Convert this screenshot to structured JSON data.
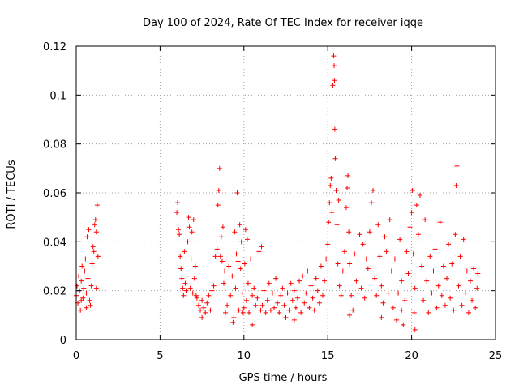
{
  "chart_data": {
    "type": "scatter",
    "title": "Day 100 of 2024, Rate Of TEC Index for receiver iqqe",
    "xlabel": "GPS time / hours",
    "ylabel": "ROTI / TECUs",
    "xlim": [
      0,
      25
    ],
    "ylim": [
      0,
      0.12
    ],
    "x_ticks": [
      0,
      5,
      10,
      15,
      20,
      25
    ],
    "x_tick_labels": [
      "0",
      "5",
      "10",
      "15",
      "20",
      "25"
    ],
    "y_ticks": [
      0,
      0.02,
      0.04,
      0.06,
      0.08,
      0.1,
      0.12
    ],
    "y_tick_labels": [
      "0",
      "0.02",
      "0.04",
      "0.06",
      "0.08",
      "0.1",
      "0.12"
    ],
    "grid": true,
    "marker": "+",
    "color": "#ff0000",
    "series": [
      {
        "name": "ROTI",
        "points": [
          [
            0.0,
            0.018
          ],
          [
            0.05,
            0.022
          ],
          [
            0.1,
            0.015
          ],
          [
            0.15,
            0.026
          ],
          [
            0.2,
            0.02
          ],
          [
            0.25,
            0.012
          ],
          [
            0.3,
            0.024
          ],
          [
            0.35,
            0.03
          ],
          [
            0.4,
            0.017
          ],
          [
            0.45,
            0.021
          ],
          [
            0.5,
            0.028
          ],
          [
            0.55,
            0.033
          ],
          [
            0.6,
            0.019
          ],
          [
            0.65,
            0.042
          ],
          [
            0.7,
            0.025
          ],
          [
            0.75,
            0.045
          ],
          [
            0.8,
            0.016
          ],
          [
            0.85,
            0.014
          ],
          [
            0.9,
            0.022
          ],
          [
            0.95,
            0.031
          ],
          [
            1.0,
            0.038
          ],
          [
            1.05,
            0.036
          ],
          [
            1.1,
            0.047
          ],
          [
            1.15,
            0.049
          ],
          [
            1.2,
            0.044
          ],
          [
            1.25,
            0.055
          ],
          [
            1.3,
            0.034
          ],
          [
            1.2,
            0.021
          ],
          [
            0.6,
            0.013
          ],
          [
            0.3,
            0.016
          ],
          [
            6.0,
            0.052
          ],
          [
            6.05,
            0.056
          ],
          [
            6.1,
            0.045
          ],
          [
            6.15,
            0.043
          ],
          [
            6.2,
            0.034
          ],
          [
            6.25,
            0.029
          ],
          [
            6.3,
            0.025
          ],
          [
            6.35,
            0.021
          ],
          [
            6.4,
            0.018
          ],
          [
            6.45,
            0.036
          ],
          [
            6.5,
            0.023
          ],
          [
            6.55,
            0.02
          ],
          [
            6.6,
            0.026
          ],
          [
            6.65,
            0.04
          ],
          [
            6.7,
            0.05
          ],
          [
            6.75,
            0.046
          ],
          [
            6.8,
            0.021
          ],
          [
            6.85,
            0.033
          ],
          [
            6.9,
            0.044
          ],
          [
            6.95,
            0.019
          ],
          [
            7.0,
            0.049
          ],
          [
            7.05,
            0.025
          ],
          [
            7.1,
            0.03
          ],
          [
            7.15,
            0.018
          ],
          [
            7.2,
            0.017
          ],
          [
            7.3,
            0.014
          ],
          [
            7.4,
            0.012
          ],
          [
            7.5,
            0.016
          ],
          [
            7.6,
            0.013
          ],
          [
            7.7,
            0.011
          ],
          [
            7.8,
            0.015
          ],
          [
            7.9,
            0.018
          ],
          [
            8.0,
            0.012
          ],
          [
            8.1,
            0.02
          ],
          [
            8.2,
            0.022
          ],
          [
            8.3,
            0.034
          ],
          [
            8.4,
            0.037
          ],
          [
            8.45,
            0.055
          ],
          [
            8.5,
            0.061
          ],
          [
            8.55,
            0.07
          ],
          [
            8.6,
            0.034
          ],
          [
            8.65,
            0.042
          ],
          [
            8.7,
            0.032
          ],
          [
            8.75,
            0.046
          ],
          [
            8.8,
            0.023
          ],
          [
            8.85,
            0.028
          ],
          [
            8.9,
            0.011
          ],
          [
            9.0,
            0.014
          ],
          [
            9.1,
            0.03
          ],
          [
            9.2,
            0.018
          ],
          [
            9.3,
            0.026
          ],
          [
            9.35,
            0.007
          ],
          [
            9.4,
            0.009
          ],
          [
            9.45,
            0.044
          ],
          [
            9.5,
            0.021
          ],
          [
            9.55,
            0.035
          ],
          [
            9.6,
            0.06
          ],
          [
            9.65,
            0.032
          ],
          [
            9.7,
            0.012
          ],
          [
            9.75,
            0.047
          ],
          [
            9.8,
            0.029
          ],
          [
            9.85,
            0.04
          ],
          [
            9.9,
            0.019
          ],
          [
            9.95,
            0.011
          ],
          [
            10.0,
            0.013
          ],
          [
            10.05,
            0.031
          ],
          [
            10.1,
            0.045
          ],
          [
            10.15,
            0.016
          ],
          [
            10.2,
            0.041
          ],
          [
            10.25,
            0.023
          ],
          [
            10.3,
            0.011
          ],
          [
            10.4,
            0.033
          ],
          [
            10.5,
            0.018
          ],
          [
            10.6,
            0.021
          ],
          [
            10.7,
            0.014
          ],
          [
            10.8,
            0.017
          ],
          [
            10.9,
            0.036
          ],
          [
            11.0,
            0.012
          ],
          [
            11.05,
            0.038
          ],
          [
            11.1,
            0.014
          ],
          [
            11.2,
            0.02
          ],
          [
            11.3,
            0.011
          ],
          [
            11.4,
            0.016
          ],
          [
            11.5,
            0.023
          ],
          [
            11.6,
            0.012
          ],
          [
            11.7,
            0.019
          ],
          [
            11.8,
            0.013
          ],
          [
            11.9,
            0.025
          ],
          [
            12.0,
            0.015
          ],
          [
            12.1,
            0.011
          ],
          [
            12.2,
            0.018
          ],
          [
            12.3,
            0.021
          ],
          [
            12.4,
            0.014
          ],
          [
            12.5,
            0.009
          ],
          [
            12.6,
            0.019
          ],
          [
            12.7,
            0.012
          ],
          [
            12.8,
            0.023
          ],
          [
            12.9,
            0.016
          ],
          [
            13.0,
            0.02
          ],
          [
            13.1,
            0.013
          ],
          [
            13.2,
            0.017
          ],
          [
            13.3,
            0.024
          ],
          [
            13.4,
            0.011
          ],
          [
            13.5,
            0.026
          ],
          [
            13.6,
            0.015
          ],
          [
            13.7,
            0.019
          ],
          [
            13.8,
            0.028
          ],
          [
            13.9,
            0.013
          ],
          [
            14.0,
            0.022
          ],
          [
            14.1,
            0.017
          ],
          [
            14.2,
            0.012
          ],
          [
            14.3,
            0.025
          ],
          [
            14.4,
            0.02
          ],
          [
            14.5,
            0.015
          ],
          [
            14.6,
            0.03
          ],
          [
            14.7,
            0.018
          ],
          [
            14.8,
            0.024
          ],
          [
            14.9,
            0.033
          ],
          [
            15.0,
            0.039
          ],
          [
            15.05,
            0.048
          ],
          [
            15.1,
            0.056
          ],
          [
            15.15,
            0.063
          ],
          [
            15.2,
            0.066
          ],
          [
            15.25,
            0.052
          ],
          [
            15.3,
            0.104
          ],
          [
            15.35,
            0.116
          ],
          [
            15.38,
            0.112
          ],
          [
            15.4,
            0.106
          ],
          [
            15.42,
            0.086
          ],
          [
            15.45,
            0.074
          ],
          [
            15.5,
            0.061
          ],
          [
            15.55,
            0.047
          ],
          [
            15.6,
            0.031
          ],
          [
            15.65,
            0.057
          ],
          [
            15.7,
            0.022
          ],
          [
            15.8,
            0.018
          ],
          [
            15.9,
            0.028
          ],
          [
            16.0,
            0.036
          ],
          [
            16.1,
            0.054
          ],
          [
            16.15,
            0.062
          ],
          [
            16.2,
            0.067
          ],
          [
            16.25,
            0.044
          ],
          [
            16.3,
            0.031
          ],
          [
            16.4,
            0.018
          ],
          [
            16.5,
            0.012
          ],
          [
            16.6,
            0.035
          ],
          [
            16.7,
            0.024
          ],
          [
            16.8,
            0.019
          ],
          [
            16.9,
            0.043
          ],
          [
            17.0,
            0.021
          ],
          [
            17.1,
            0.039
          ],
          [
            17.2,
            0.017
          ],
          [
            17.3,
            0.033
          ],
          [
            17.4,
            0.029
          ],
          [
            17.5,
            0.044
          ],
          [
            17.6,
            0.056
          ],
          [
            17.7,
            0.061
          ],
          [
            17.8,
            0.025
          ],
          [
            17.9,
            0.018
          ],
          [
            18.0,
            0.047
          ],
          [
            18.1,
            0.034
          ],
          [
            18.2,
            0.022
          ],
          [
            18.3,
            0.015
          ],
          [
            18.4,
            0.042
          ],
          [
            18.5,
            0.036
          ],
          [
            18.6,
            0.019
          ],
          [
            18.7,
            0.049
          ],
          [
            18.8,
            0.028
          ],
          [
            18.9,
            0.013
          ],
          [
            19.0,
            0.033
          ],
          [
            19.1,
            0.008
          ],
          [
            19.2,
            0.019
          ],
          [
            19.3,
            0.041
          ],
          [
            19.4,
            0.024
          ],
          [
            19.5,
            0.006
          ],
          [
            19.6,
            0.016
          ],
          [
            19.7,
            0.036
          ],
          [
            19.8,
            0.027
          ],
          [
            19.9,
            0.046
          ],
          [
            20.0,
            0.052
          ],
          [
            20.05,
            0.061
          ],
          [
            20.1,
            0.035
          ],
          [
            20.15,
            0.011
          ],
          [
            20.2,
            0.021
          ],
          [
            20.3,
            0.055
          ],
          [
            20.4,
            0.043
          ],
          [
            20.5,
            0.059
          ],
          [
            20.6,
            0.03
          ],
          [
            20.7,
            0.016
          ],
          [
            20.8,
            0.049
          ],
          [
            20.9,
            0.024
          ],
          [
            21.0,
            0.011
          ],
          [
            21.1,
            0.034
          ],
          [
            21.2,
            0.019
          ],
          [
            21.3,
            0.028
          ],
          [
            21.4,
            0.037
          ],
          [
            21.5,
            0.013
          ],
          [
            21.6,
            0.022
          ],
          [
            21.7,
            0.048
          ],
          [
            21.8,
            0.018
          ],
          [
            21.9,
            0.03
          ],
          [
            22.0,
            0.014
          ],
          [
            22.1,
            0.025
          ],
          [
            22.2,
            0.039
          ],
          [
            22.3,
            0.017
          ],
          [
            22.4,
            0.031
          ],
          [
            22.5,
            0.012
          ],
          [
            22.6,
            0.043
          ],
          [
            22.65,
            0.063
          ],
          [
            22.7,
            0.071
          ],
          [
            22.8,
            0.022
          ],
          [
            22.9,
            0.034
          ],
          [
            23.0,
            0.014
          ],
          [
            23.1,
            0.041
          ],
          [
            23.2,
            0.019
          ],
          [
            23.3,
            0.028
          ],
          [
            23.4,
            0.011
          ],
          [
            23.5,
            0.024
          ],
          [
            23.6,
            0.016
          ],
          [
            23.7,
            0.029
          ],
          [
            23.8,
            0.013
          ],
          [
            23.9,
            0.021
          ],
          [
            23.95,
            0.027
          ],
          [
            20.2,
            0.004
          ],
          [
            19.4,
            0.012
          ],
          [
            18.2,
            0.009
          ],
          [
            16.3,
            0.01
          ],
          [
            13.0,
            0.008
          ],
          [
            10.5,
            0.006
          ],
          [
            7.5,
            0.009
          ]
        ]
      }
    ]
  }
}
